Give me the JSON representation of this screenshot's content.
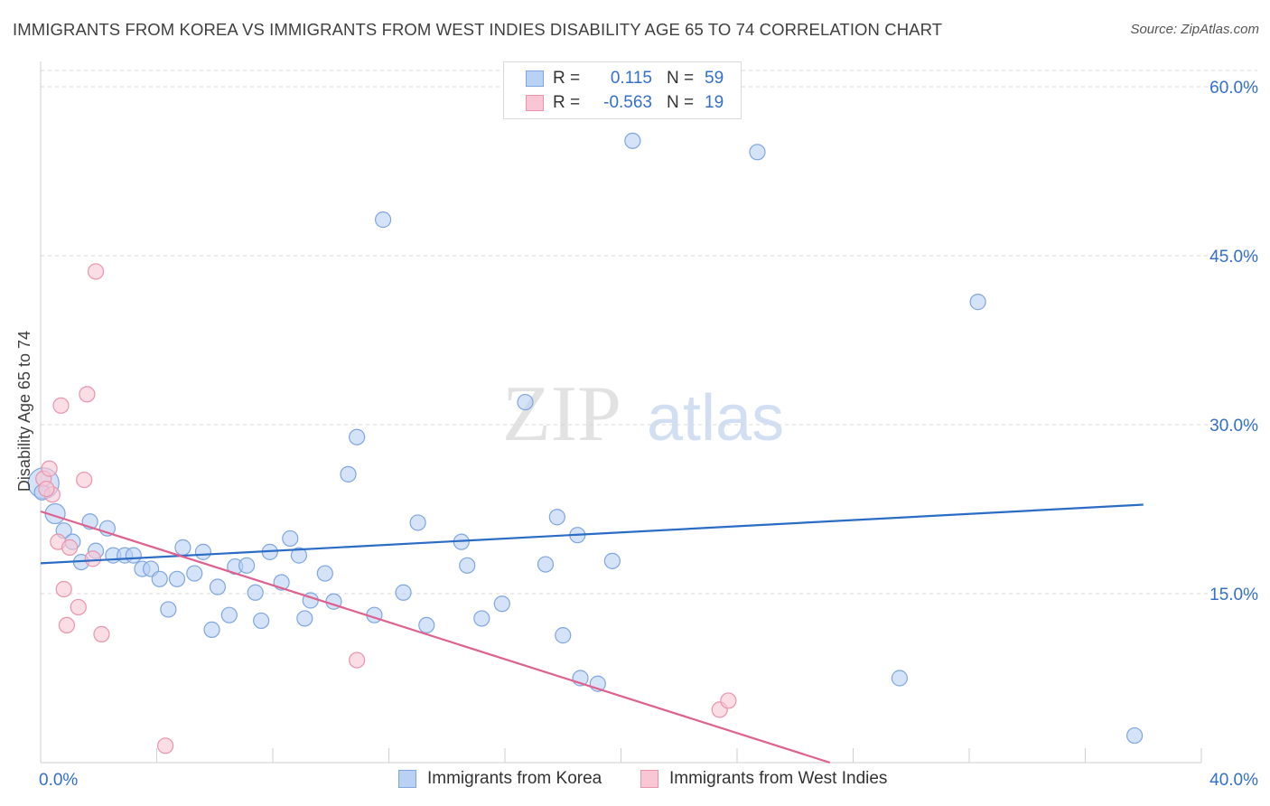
{
  "title": "IMMIGRANTS FROM KOREA VS IMMIGRANTS FROM WEST INDIES DISABILITY AGE 65 TO 74 CORRELATION CHART",
  "source": "Source: ZipAtlas.com",
  "watermark": {
    "zip": "ZIP",
    "atlas": "atlas"
  },
  "colors": {
    "korea_fill": "#b9d1f3",
    "korea_stroke": "#7ea6e0",
    "korea_line": "#2b6cc4",
    "wi_fill": "#f8c6d4",
    "wi_stroke": "#ea93ad",
    "wi_line": "#e0608f",
    "value_text": "#3370cc",
    "grid": "#d8d8d8"
  },
  "legend": {
    "rows": [
      {
        "r_label": "R =",
        "r_value": "0.115",
        "n_label": "N =",
        "n_value": "59"
      },
      {
        "r_label": "R =",
        "r_value": "-0.563",
        "n_label": "N =",
        "n_value": "19"
      }
    ]
  },
  "chart_data": {
    "type": "scatter",
    "title": "IMMIGRANTS FROM KOREA VS IMMIGRANTS FROM WEST INDIES DISABILITY AGE 65 TO 74 CORRELATION CHART",
    "xlabel": "",
    "ylabel": "Disability Age 65 to 74",
    "xlim": [
      0,
      40
    ],
    "ylim": [
      0,
      60
    ],
    "x_tick_labels": [
      "0.0%",
      "40.0%"
    ],
    "y_tick_labels": [
      "15.0%",
      "30.0%",
      "45.0%",
      "60.0%"
    ],
    "y_ticks": [
      15,
      30,
      45,
      60
    ],
    "grid": "horizontal dashed",
    "legend_position": "top-center",
    "series": [
      {
        "name": "Immigrants from Korea",
        "r": 0.115,
        "n": 59,
        "trend": [
          [
            0,
            17.7
          ],
          [
            38,
            22.9
          ]
        ],
        "points": [
          [
            0.1,
            24.8
          ],
          [
            0.5,
            22.1
          ],
          [
            0.8,
            20.6
          ],
          [
            1.1,
            19.6
          ],
          [
            1.4,
            17.8
          ],
          [
            1.7,
            21.4
          ],
          [
            1.9,
            18.8
          ],
          [
            2.3,
            20.8
          ],
          [
            2.5,
            18.4
          ],
          [
            2.9,
            18.4
          ],
          [
            3.2,
            18.4
          ],
          [
            3.5,
            17.2
          ],
          [
            3.8,
            17.2
          ],
          [
            4.1,
            16.3
          ],
          [
            4.4,
            13.6
          ],
          [
            4.7,
            16.3
          ],
          [
            4.9,
            19.1
          ],
          [
            5.3,
            16.8
          ],
          [
            5.6,
            18.7
          ],
          [
            5.9,
            11.8
          ],
          [
            6.1,
            15.6
          ],
          [
            6.5,
            13.1
          ],
          [
            6.7,
            17.4
          ],
          [
            7.1,
            17.5
          ],
          [
            7.4,
            15.1
          ],
          [
            7.6,
            12.6
          ],
          [
            7.9,
            18.7
          ],
          [
            8.3,
            16.0
          ],
          [
            8.6,
            19.9
          ],
          [
            8.9,
            18.4
          ],
          [
            9.1,
            12.8
          ],
          [
            9.3,
            14.4
          ],
          [
            9.8,
            16.8
          ],
          [
            10.1,
            14.3
          ],
          [
            10.6,
            25.6
          ],
          [
            10.9,
            28.9
          ],
          [
            11.5,
            13.1
          ],
          [
            11.8,
            48.2
          ],
          [
            12.5,
            15.1
          ],
          [
            13.0,
            21.3
          ],
          [
            13.3,
            12.2
          ],
          [
            14.5,
            19.6
          ],
          [
            14.7,
            17.5
          ],
          [
            15.2,
            12.8
          ],
          [
            15.9,
            14.1
          ],
          [
            16.7,
            32.0
          ],
          [
            17.4,
            17.6
          ],
          [
            17.8,
            21.8
          ],
          [
            18.0,
            11.3
          ],
          [
            18.5,
            20.2
          ],
          [
            18.6,
            7.5
          ],
          [
            19.2,
            7.0
          ],
          [
            19.7,
            17.9
          ],
          [
            20.4,
            55.2
          ],
          [
            24.7,
            54.2
          ],
          [
            32.3,
            40.9
          ],
          [
            29.6,
            7.5
          ],
          [
            37.7,
            2.4
          ],
          [
            0.05,
            24.0
          ]
        ]
      },
      {
        "name": "Immigrants from West Indies",
        "r": -0.563,
        "n": 19,
        "trend": [
          [
            0,
            22.3
          ],
          [
            27.2,
            0
          ]
        ],
        "points": [
          [
            0.1,
            25.2
          ],
          [
            0.3,
            26.1
          ],
          [
            0.4,
            23.8
          ],
          [
            0.6,
            19.6
          ],
          [
            0.7,
            31.7
          ],
          [
            0.8,
            15.4
          ],
          [
            0.9,
            12.2
          ],
          [
            1.0,
            19.1
          ],
          [
            1.3,
            13.8
          ],
          [
            1.5,
            25.1
          ],
          [
            1.6,
            32.7
          ],
          [
            1.8,
            18.1
          ],
          [
            1.9,
            43.6
          ],
          [
            2.1,
            11.4
          ],
          [
            4.3,
            1.5
          ],
          [
            10.9,
            9.1
          ],
          [
            23.4,
            4.7
          ],
          [
            23.7,
            5.5
          ],
          [
            0.2,
            24.3
          ]
        ]
      }
    ]
  },
  "bottom_legend": [
    "Immigrants from Korea",
    "Immigrants from West Indies"
  ]
}
